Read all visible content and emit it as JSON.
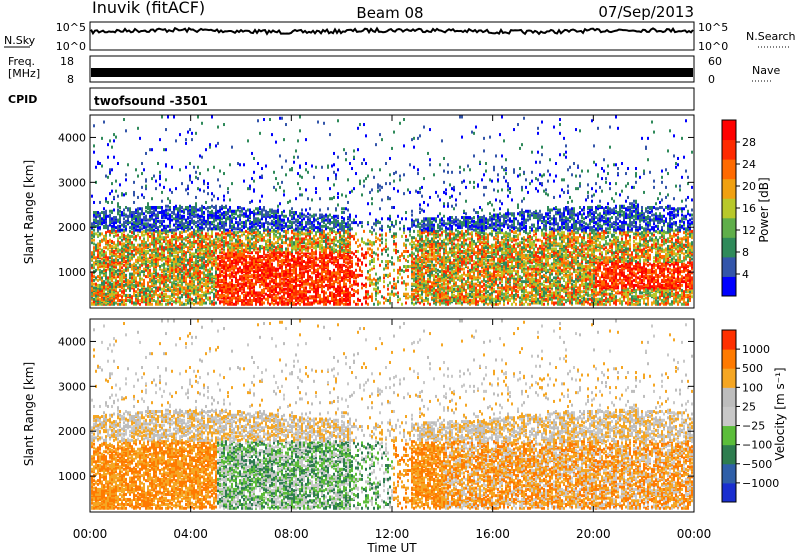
{
  "header": {
    "station": "Inuvik (fitACF)",
    "beam": "Beam 08",
    "date": "07/Sep/2013"
  },
  "panels": {
    "nsky_label": "N.Sky",
    "nsky_ticks": [
      "10^5",
      "10^0"
    ],
    "nsearch_label": "N.Search",
    "freq_label_line1": "Freq.",
    "freq_label_line2": "[MHz]",
    "freq_ticks": [
      "18",
      "8"
    ],
    "nave_label": "Nave",
    "nave_ticks": [
      "60",
      "0"
    ],
    "cpid_label": "CPID",
    "cpid_value": "twofsound -3501"
  },
  "colors": {
    "power_scale": [
      "#0000ff",
      "#3355aa",
      "#2f8a5a",
      "#5fae4a",
      "#b8c82a",
      "#f0a010",
      "#ff6a00",
      "#ff2a00",
      "#ff0000"
    ],
    "velocity_scale": [
      "#1a2fd0",
      "#2f5fa8",
      "#2e7d4f",
      "#5bbd3a",
      "#c8c8c8",
      "#bdbdbd",
      "#f5a623",
      "#ff7a00",
      "#ff3000"
    ]
  },
  "chart_data": [
    {
      "type": "heatmap",
      "name": "power",
      "ylabel": "Slant Range [km]",
      "yticks": [
        1000,
        2000,
        3000,
        4000
      ],
      "ylim": [
        200,
        4500
      ],
      "xlim": [
        "00:00",
        "24:00"
      ],
      "colorbar_label": "Power [dB]",
      "colorbar_ticks": [
        4,
        8,
        12,
        16,
        20,
        24,
        28
      ],
      "colorbar_range": [
        0,
        32
      ]
    },
    {
      "type": "heatmap",
      "name": "velocity",
      "ylabel": "Slant Range [km]",
      "yticks": [
        1000,
        2000,
        3000,
        4000
      ],
      "ylim": [
        200,
        4500
      ],
      "xlim": [
        "00:00",
        "24:00"
      ],
      "colorbar_label": "Velocity [m s⁻¹]",
      "colorbar_ticks": [
        "1000",
        "500",
        "100",
        "25",
        "−25",
        "−100",
        "−500",
        "−1000"
      ],
      "xticks": [
        "00:00",
        "04:00",
        "08:00",
        "12:00",
        "16:00",
        "20:00",
        "00:00"
      ],
      "xlabel": "Time UT"
    }
  ]
}
